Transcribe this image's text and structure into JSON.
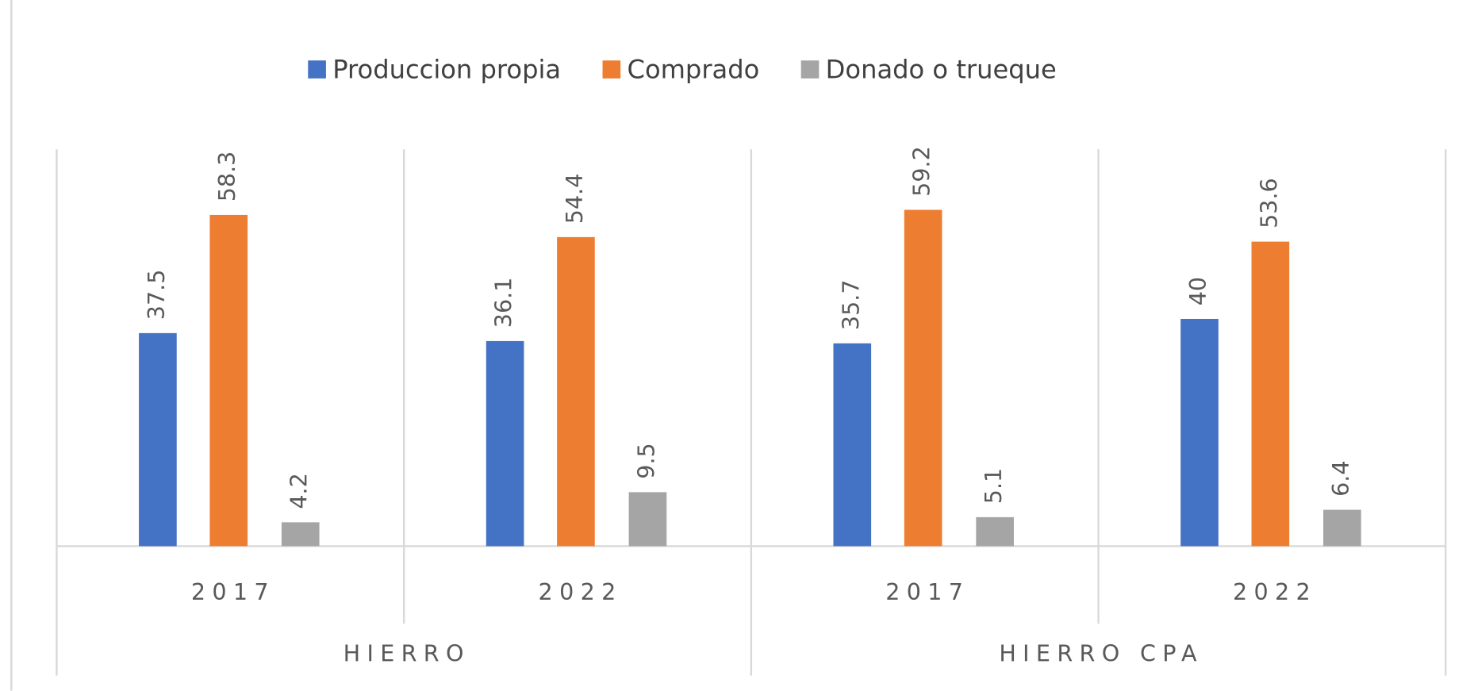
{
  "chart_data": {
    "type": "bar",
    "categories": [
      "2017",
      "2022",
      "2017",
      "2022"
    ],
    "groups": [
      "HIERRO",
      "HIERRO CPA"
    ],
    "series": [
      {
        "name": "Produccion propia",
        "color": "#4472c4",
        "values": [
          37.5,
          36.1,
          35.7,
          40
        ]
      },
      {
        "name": "Comprado",
        "color": "#ed7d31",
        "values": [
          58.3,
          54.4,
          59.2,
          53.6
        ]
      },
      {
        "name": "Donado o trueque",
        "color": "#a5a5a5",
        "values": [
          4.2,
          9.5,
          5.1,
          6.4
        ]
      }
    ],
    "legend": "top"
  }
}
